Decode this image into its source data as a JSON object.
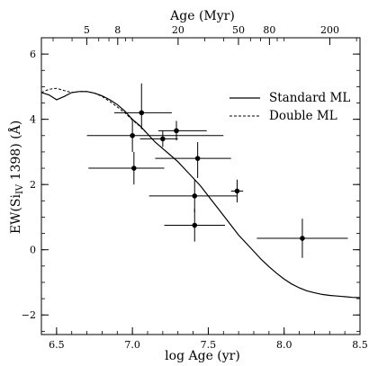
{
  "chart_data": {
    "type": "scatter",
    "xlabel_bottom": "log Age  (yr)",
    "xlabel_top": "Age (Myr)",
    "ylabel_parts": [
      "EW(Si",
      "IV",
      "  1398)  (",
      "Å",
      ")"
    ],
    "xlim": [
      6.4,
      8.5
    ],
    "ylim": [
      -2.6,
      6.5
    ],
    "bottom_ticks": [
      6.5,
      7.0,
      7.5,
      8.0,
      8.5
    ],
    "bottom_tick_labels": [
      "6.5",
      "7.0",
      "7.5",
      "8.0",
      "8.5"
    ],
    "left_ticks": [
      -2,
      0,
      2,
      4,
      6
    ],
    "left_tick_labels": [
      "−2",
      "0",
      "2",
      "4",
      "6"
    ],
    "top_ticks_myr": [
      5,
      8,
      20,
      50,
      80,
      200
    ],
    "top_tick_labels": [
      "5",
      "8",
      "20",
      "50",
      "80",
      "200"
    ],
    "legend": {
      "placement": "top-right",
      "entries": [
        {
          "label": "Standard ML",
          "style": "solid"
        },
        {
          "label": "Double ML",
          "style": "dashed"
        }
      ]
    },
    "series": [
      {
        "name": "Standard ML",
        "kind": "line",
        "style": "solid",
        "x": [
          6.4,
          6.45,
          6.5,
          6.55,
          6.6,
          6.65,
          6.7,
          6.75,
          6.8,
          6.85,
          6.9,
          6.95,
          7.0,
          7.05,
          7.1,
          7.15,
          7.2,
          7.25,
          7.3,
          7.35,
          7.4,
          7.45,
          7.5,
          7.55,
          7.6,
          7.65,
          7.7,
          7.75,
          7.8,
          7.85,
          7.9,
          7.95,
          8.0,
          8.05,
          8.1,
          8.15,
          8.2,
          8.25,
          8.3,
          8.35,
          8.4,
          8.45,
          8.5
        ],
        "y": [
          4.82,
          4.75,
          4.6,
          4.7,
          4.82,
          4.85,
          4.85,
          4.8,
          4.72,
          4.6,
          4.45,
          4.25,
          4.0,
          3.8,
          3.55,
          3.3,
          3.1,
          2.9,
          2.7,
          2.45,
          2.2,
          1.95,
          1.65,
          1.35,
          1.05,
          0.75,
          0.45,
          0.2,
          -0.05,
          -0.3,
          -0.52,
          -0.72,
          -0.9,
          -1.05,
          -1.17,
          -1.26,
          -1.32,
          -1.37,
          -1.4,
          -1.42,
          -1.44,
          -1.46,
          -1.47
        ]
      },
      {
        "name": "Double ML",
        "kind": "line",
        "style": "dashed",
        "x": [
          6.4,
          6.45,
          6.5,
          6.55,
          6.6,
          6.65,
          6.7,
          6.75,
          6.8,
          6.85,
          6.9,
          6.95,
          7.0,
          7.05,
          7.1
        ],
        "y": [
          4.82,
          4.92,
          4.95,
          4.88,
          4.82,
          4.85,
          4.85,
          4.8,
          4.7,
          4.55,
          4.38,
          4.2,
          3.98,
          3.78,
          3.55
        ]
      },
      {
        "name": "data",
        "kind": "points",
        "points": [
          {
            "x": 7.06,
            "y": 4.2,
            "xerr": [
              0.18,
              0.2
            ],
            "yerr": [
              0.5,
              0.9
            ]
          },
          {
            "x": 7.0,
            "y": 3.5,
            "xerr": [
              0.3,
              0.6
            ],
            "yerr": [
              0.5,
              0.5
            ]
          },
          {
            "x": 7.29,
            "y": 3.65,
            "xerr": [
              0.12,
              0.2
            ],
            "yerr": [
              0.3,
              0.3
            ]
          },
          {
            "x": 7.2,
            "y": 3.4,
            "xerr": [
              0.15,
              0.1
            ],
            "yerr": [
              0.25,
              0.25
            ]
          },
          {
            "x": 7.01,
            "y": 2.5,
            "xerr": [
              0.3,
              0.2
            ],
            "yerr": [
              0.5,
              0.5
            ]
          },
          {
            "x": 7.43,
            "y": 2.8,
            "xerr": [
              0.28,
              0.22
            ],
            "yerr": [
              0.6,
              0.5
            ]
          },
          {
            "x": 7.41,
            "y": 1.65,
            "xerr": [
              0.3,
              0.28
            ],
            "yerr": [
              0.5,
              0.5
            ]
          },
          {
            "x": 7.41,
            "y": 0.75,
            "xerr": [
              0.2,
              0.2
            ],
            "yerr": [
              0.5,
              0.5
            ]
          },
          {
            "x": 7.69,
            "y": 1.8,
            "xerr": [
              0.04,
              0.04
            ],
            "yerr": [
              0.35,
              0.35
            ]
          },
          {
            "x": 8.12,
            "y": 0.35,
            "xerr": [
              0.3,
              0.3
            ],
            "yerr": [
              0.6,
              0.6
            ]
          }
        ]
      }
    ]
  }
}
